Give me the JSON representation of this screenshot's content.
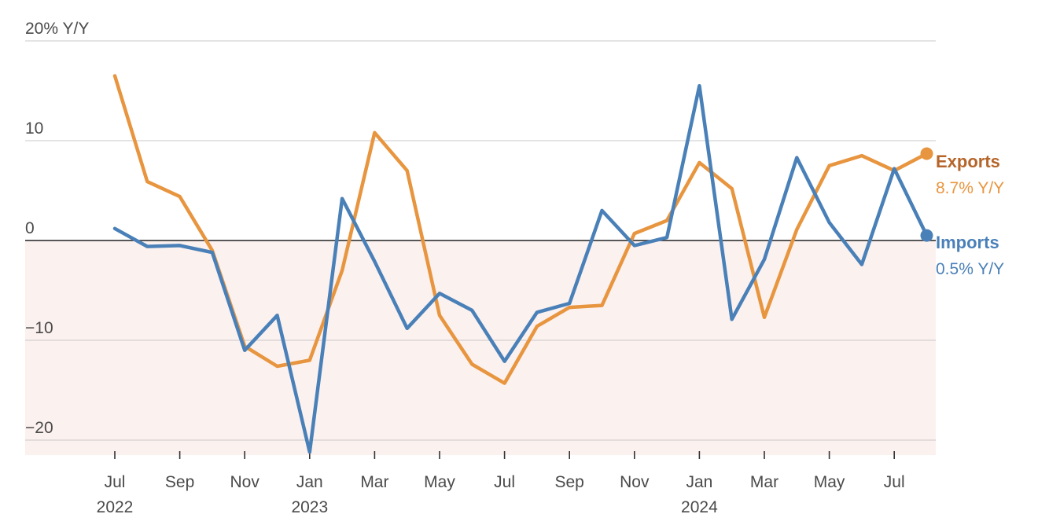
{
  "chart_data": {
    "type": "line",
    "x": [
      "2022-07",
      "2022-08",
      "2022-09",
      "2022-10",
      "2022-11",
      "2022-12",
      "2023-01",
      "2023-02",
      "2023-03",
      "2023-04",
      "2023-05",
      "2023-06",
      "2023-07",
      "2023-08",
      "2023-09",
      "2023-10",
      "2023-11",
      "2023-12",
      "2024-01",
      "2024-02",
      "2024-03",
      "2024-04",
      "2024-05",
      "2024-06",
      "2024-07",
      "2024-08"
    ],
    "series": [
      {
        "name": "Exports",
        "latest_label": "8.7% Y/Y",
        "color": "#e8953f",
        "label_color": "#b5652a",
        "values": [
          16.5,
          5.9,
          4.4,
          -1.0,
          -10.6,
          -12.6,
          -12.0,
          -3.0,
          10.8,
          7.0,
          -7.5,
          -12.4,
          -14.3,
          -8.6,
          -6.7,
          -6.5,
          0.7,
          2.0,
          7.8,
          5.2,
          -7.7,
          1.1,
          7.5,
          8.5,
          7.0,
          8.7
        ]
      },
      {
        "name": "Imports",
        "latest_label": "0.5% Y/Y",
        "color": "#4a80b8",
        "label_color": "#4a80b8",
        "values": [
          1.2,
          -0.6,
          -0.5,
          -1.2,
          -11.0,
          -7.5,
          -21.2,
          4.2,
          -2.1,
          -8.8,
          -5.3,
          -7.0,
          -12.1,
          -7.2,
          -6.3,
          3.0,
          -0.5,
          0.3,
          15.5,
          -7.9,
          -1.9,
          8.3,
          1.8,
          -2.4,
          7.2,
          0.5
        ]
      }
    ],
    "y_unit_label": "20% Y/Y",
    "y_ticks": [
      20,
      10,
      0,
      -10,
      -20
    ],
    "y_tick_labels": [
      "20% Y/Y",
      "10",
      "0",
      "−10",
      "−20"
    ],
    "ylim": [
      -21.5,
      20
    ],
    "x_ticks": [
      {
        "month": "2022-07",
        "label": "Jul",
        "year": "2022"
      },
      {
        "month": "2022-09",
        "label": "Sep",
        "year": ""
      },
      {
        "month": "2022-11",
        "label": "Nov",
        "year": ""
      },
      {
        "month": "2023-01",
        "label": "Jan",
        "year": "2023"
      },
      {
        "month": "2023-03",
        "label": "Mar",
        "year": ""
      },
      {
        "month": "2023-05",
        "label": "May",
        "year": ""
      },
      {
        "month": "2023-07",
        "label": "Jul",
        "year": ""
      },
      {
        "month": "2023-09",
        "label": "Sep",
        "year": ""
      },
      {
        "month": "2023-11",
        "label": "Nov",
        "year": ""
      },
      {
        "month": "2024-01",
        "label": "Jan",
        "year": "2024"
      },
      {
        "month": "2024-03",
        "label": "Mar",
        "year": ""
      },
      {
        "month": "2024-05",
        "label": "May",
        "year": ""
      },
      {
        "month": "2024-07",
        "label": "Jul",
        "year": ""
      }
    ],
    "grid": true,
    "negative_region_color": "#fbf1ef",
    "legend": "end-of-line labels at right"
  }
}
